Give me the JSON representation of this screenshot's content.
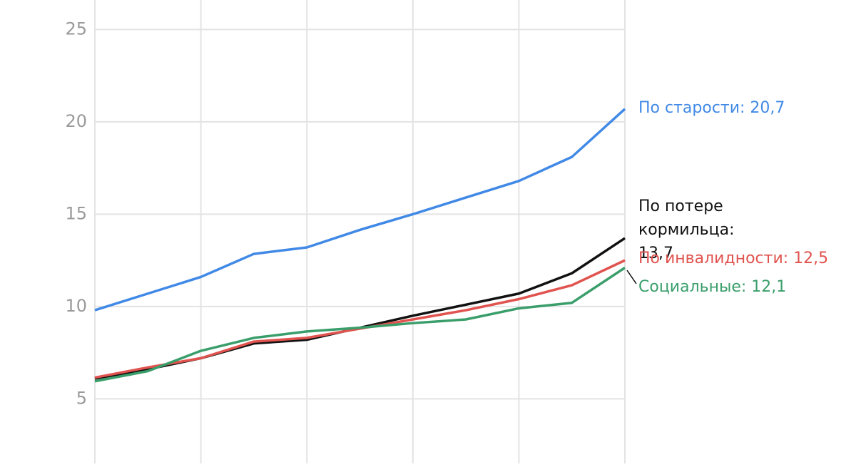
{
  "chart_data": {
    "type": "line",
    "categories": [
      null,
      null,
      null,
      null,
      null,
      null,
      null,
      null,
      null,
      null,
      null
    ],
    "series": [
      {
        "name": "По старости: 20,7",
        "color": "#4189e6",
        "values": [
          9.8,
          10.7,
          11.6,
          12.85,
          13.2,
          14.15,
          15.0,
          15.9,
          16.8,
          18.1,
          20.7
        ]
      },
      {
        "name": "По потере кормильца: 13,7",
        "color": "#111111",
        "values": [
          6.1,
          6.6,
          7.2,
          8.0,
          8.2,
          8.85,
          9.5,
          10.1,
          10.7,
          11.8,
          13.7
        ]
      },
      {
        "name": "По инвалидности: 12,5",
        "color": "#e0534f",
        "values": [
          6.15,
          6.7,
          7.2,
          8.1,
          8.3,
          8.8,
          9.3,
          9.8,
          10.4,
          11.15,
          12.5
        ]
      },
      {
        "name": "Социальные: 12,1",
        "color": "#3a9e6b",
        "values": [
          5.95,
          6.5,
          7.6,
          8.3,
          8.65,
          8.85,
          9.1,
          9.3,
          9.9,
          10.2,
          12.1
        ]
      }
    ],
    "ylim": [
      1.5,
      26.6
    ],
    "yticks": [
      5,
      10,
      15,
      20,
      25
    ],
    "grid": true
  }
}
